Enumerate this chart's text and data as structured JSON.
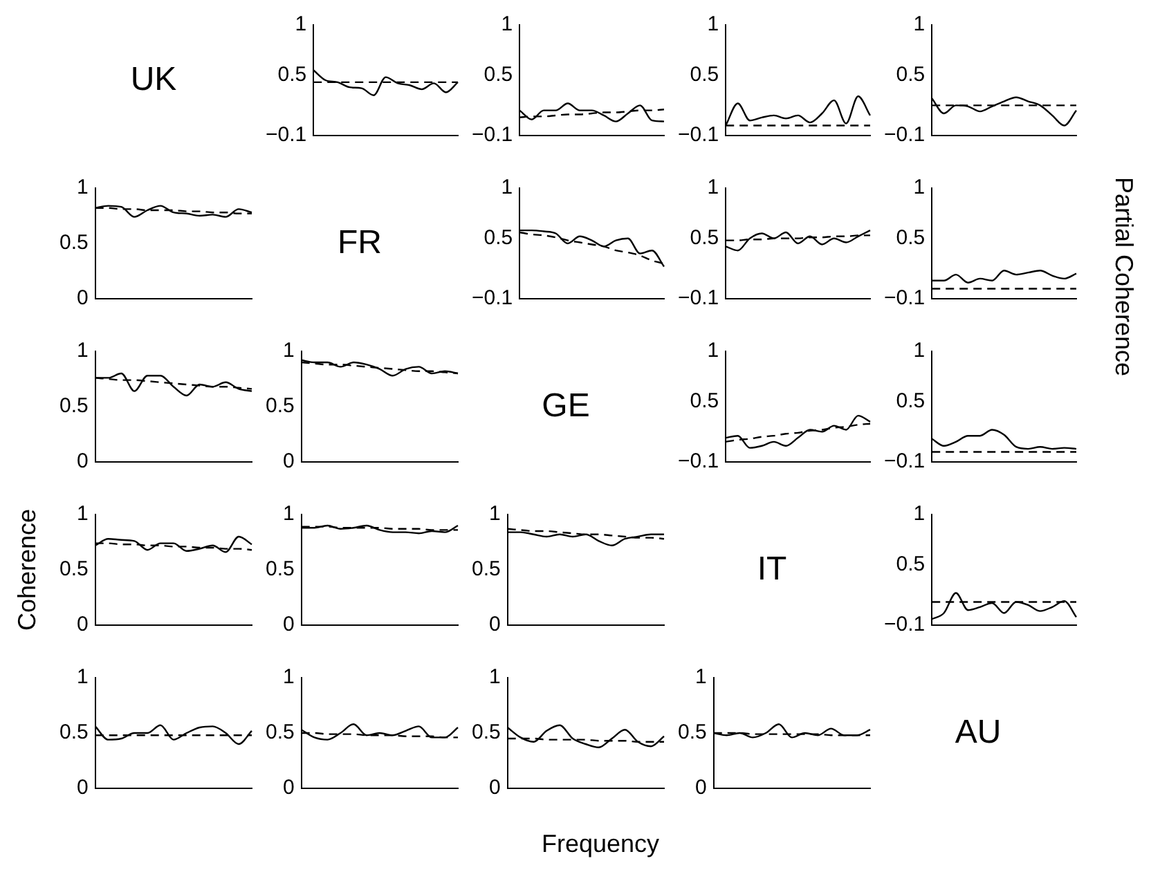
{
  "chart_data": [
    {
      "type": "other",
      "title": "UK"
    },
    {
      "type": "line",
      "categories": [
        null,
        null,
        null,
        null,
        null,
        null,
        null,
        null,
        null,
        null,
        null,
        null,
        null
      ],
      "ylim": [
        -0.1,
        1
      ],
      "yticks": [
        -0.1,
        0.5,
        1
      ],
      "tick_labels": "y",
      "marker": "none",
      "series": [
        {
          "color": "#000000",
          "line_style": "solid",
          "values": [
            0.55,
            0.45,
            0.43,
            0.38,
            0.37,
            0.3,
            0.48,
            0.42,
            0.4,
            0.36,
            0.42,
            0.33,
            0.43
          ]
        },
        {
          "color": "#000000",
          "line_style": "dashed",
          "values": [
            0.43,
            0.43,
            0.43,
            0.43,
            0.43,
            0.43,
            0.43,
            0.43,
            0.43,
            0.43,
            0.43,
            0.43,
            0.43
          ]
        }
      ]
    },
    {
      "type": "line",
      "categories": [
        null,
        null,
        null,
        null,
        null,
        null,
        null,
        null,
        null,
        null,
        null,
        null,
        null
      ],
      "ylim": [
        -0.1,
        1
      ],
      "yticks": [
        -0.1,
        0.5,
        1
      ],
      "tick_labels": "y",
      "marker": "none",
      "series": [
        {
          "color": "#000000",
          "line_style": "solid",
          "values": [
            0.15,
            0.06,
            0.15,
            0.15,
            0.22,
            0.15,
            0.15,
            0.1,
            0.04,
            0.12,
            0.2,
            0.05,
            0.04
          ]
        },
        {
          "color": "#000000",
          "line_style": "dashed",
          "values": [
            0.08,
            0.09,
            0.09,
            0.1,
            0.11,
            0.11,
            0.12,
            0.13,
            0.13,
            0.14,
            0.15,
            0.15,
            0.16
          ]
        }
      ]
    },
    {
      "type": "line",
      "categories": [
        null,
        null,
        null,
        null,
        null,
        null,
        null,
        null,
        null,
        null,
        null,
        null,
        null
      ],
      "ylim": [
        -0.1,
        1
      ],
      "yticks": [
        -0.1,
        0.5,
        1
      ],
      "tick_labels": "y",
      "marker": "none",
      "series": [
        {
          "color": "#000000",
          "line_style": "solid",
          "values": [
            0,
            0.22,
            0.05,
            0.08,
            0.1,
            0.07,
            0.1,
            0.03,
            0.12,
            0.25,
            0.02,
            0.29,
            0.1
          ]
        },
        {
          "color": "#000000",
          "line_style": "dashed",
          "values": [
            0,
            0,
            0,
            0,
            0,
            0,
            0,
            0,
            0,
            0,
            0,
            0,
            0
          ]
        }
      ]
    },
    {
      "type": "line",
      "categories": [
        null,
        null,
        null,
        null,
        null,
        null,
        null,
        null,
        null,
        null,
        null,
        null,
        null
      ],
      "ylim": [
        -0.1,
        1
      ],
      "yticks": [
        -0.1,
        0.5,
        1
      ],
      "tick_labels": "y",
      "marker": "none",
      "series": [
        {
          "color": "#000000",
          "line_style": "solid",
          "values": [
            0.27,
            0.12,
            0.2,
            0.19,
            0.14,
            0.19,
            0.24,
            0.28,
            0.24,
            0.2,
            0.1,
            0,
            0.15
          ]
        },
        {
          "color": "#000000",
          "line_style": "dashed",
          "values": [
            0.2,
            0.2,
            0.2,
            0.2,
            0.2,
            0.2,
            0.2,
            0.2,
            0.2,
            0.2,
            0.2,
            0.2,
            0.2
          ]
        }
      ]
    },
    {
      "type": "line",
      "categories": [
        null,
        null,
        null,
        null,
        null,
        null,
        null,
        null,
        null,
        null,
        null,
        null,
        null
      ],
      "ylim": [
        0,
        1
      ],
      "yticks": [
        0,
        0.5,
        1
      ],
      "tick_labels": "y",
      "marker": "none",
      "series": [
        {
          "color": "#000000",
          "line_style": "solid",
          "values": [
            0.82,
            0.84,
            0.83,
            0.74,
            0.8,
            0.84,
            0.78,
            0.77,
            0.75,
            0.76,
            0.74,
            0.81,
            0.78
          ]
        },
        {
          "color": "#000000",
          "line_style": "dashed",
          "values": [
            0.82,
            0.82,
            0.81,
            0.81,
            0.8,
            0.8,
            0.8,
            0.79,
            0.79,
            0.78,
            0.78,
            0.77,
            0.77
          ]
        }
      ]
    },
    {
      "type": "other",
      "title": "FR"
    },
    {
      "type": "line",
      "categories": [
        null,
        null,
        null,
        null,
        null,
        null,
        null,
        null,
        null,
        null,
        null,
        null,
        null
      ],
      "ylim": [
        -0.1,
        1
      ],
      "yticks": [
        -0.1,
        0.5,
        1
      ],
      "tick_labels": "y",
      "marker": "none",
      "series": [
        {
          "color": "#000000",
          "line_style": "solid",
          "values": [
            0.58,
            0.58,
            0.57,
            0.55,
            0.45,
            0.52,
            0.48,
            0.42,
            0.48,
            0.5,
            0.35,
            0.38,
            0.22
          ]
        },
        {
          "color": "#000000",
          "line_style": "dashed",
          "values": [
            0.56,
            0.54,
            0.53,
            0.51,
            0.48,
            0.46,
            0.44,
            0.42,
            0.38,
            0.36,
            0.33,
            0.28,
            0.25
          ]
        }
      ]
    },
    {
      "type": "line",
      "categories": [
        null,
        null,
        null,
        null,
        null,
        null,
        null,
        null,
        null,
        null,
        null,
        null,
        null
      ],
      "ylim": [
        -0.1,
        1
      ],
      "yticks": [
        -0.1,
        0.5,
        1
      ],
      "tick_labels": "y",
      "marker": "none",
      "series": [
        {
          "color": "#000000",
          "line_style": "solid",
          "values": [
            0.42,
            0.38,
            0.5,
            0.55,
            0.5,
            0.56,
            0.45,
            0.52,
            0.44,
            0.5,
            0.46,
            0.52,
            0.58
          ]
        },
        {
          "color": "#000000",
          "line_style": "dashed",
          "values": [
            0.48,
            0.48,
            0.49,
            0.49,
            0.5,
            0.5,
            0.5,
            0.51,
            0.51,
            0.52,
            0.52,
            0.53,
            0.53
          ]
        }
      ]
    },
    {
      "type": "line",
      "categories": [
        null,
        null,
        null,
        null,
        null,
        null,
        null,
        null,
        null,
        null,
        null,
        null,
        null
      ],
      "ylim": [
        -0.1,
        1
      ],
      "yticks": [
        -0.1,
        0.5,
        1
      ],
      "tick_labels": "y",
      "marker": "none",
      "series": [
        {
          "color": "#000000",
          "line_style": "solid",
          "values": [
            0.08,
            0.08,
            0.14,
            0.06,
            0.1,
            0.08,
            0.18,
            0.14,
            0.16,
            0.18,
            0.13,
            0.1,
            0.15
          ]
        },
        {
          "color": "#000000",
          "line_style": "dashed",
          "values": [
            0,
            0,
            0,
            0,
            0,
            0,
            0,
            0,
            0,
            0,
            0,
            0,
            0
          ]
        }
      ]
    },
    {
      "type": "line",
      "categories": [
        null,
        null,
        null,
        null,
        null,
        null,
        null,
        null,
        null,
        null,
        null,
        null,
        null
      ],
      "ylim": [
        0,
        1
      ],
      "yticks": [
        0,
        0.5,
        1
      ],
      "tick_labels": "y",
      "marker": "none",
      "series": [
        {
          "color": "#000000",
          "line_style": "solid",
          "values": [
            0.76,
            0.76,
            0.8,
            0.64,
            0.78,
            0.78,
            0.68,
            0.6,
            0.7,
            0.68,
            0.72,
            0.66,
            0.64
          ]
        },
        {
          "color": "#000000",
          "line_style": "dashed",
          "values": [
            0.76,
            0.75,
            0.74,
            0.74,
            0.73,
            0.72,
            0.71,
            0.7,
            0.69,
            0.68,
            0.68,
            0.67,
            0.66
          ]
        }
      ]
    },
    {
      "type": "line",
      "categories": [
        null,
        null,
        null,
        null,
        null,
        null,
        null,
        null,
        null,
        null,
        null,
        null,
        null
      ],
      "ylim": [
        0,
        1
      ],
      "yticks": [
        0,
        0.5,
        1
      ],
      "tick_labels": "y",
      "marker": "none",
      "series": [
        {
          "color": "#000000",
          "line_style": "solid",
          "values": [
            0.92,
            0.9,
            0.9,
            0.86,
            0.9,
            0.88,
            0.84,
            0.78,
            0.84,
            0.86,
            0.8,
            0.82,
            0.8
          ]
        },
        {
          "color": "#000000",
          "line_style": "dashed",
          "values": [
            0.9,
            0.89,
            0.88,
            0.88,
            0.87,
            0.86,
            0.85,
            0.84,
            0.83,
            0.82,
            0.82,
            0.81,
            0.8
          ]
        }
      ]
    },
    {
      "type": "other",
      "title": "GE"
    },
    {
      "type": "line",
      "categories": [
        null,
        null,
        null,
        null,
        null,
        null,
        null,
        null,
        null,
        null,
        null,
        null,
        null
      ],
      "ylim": [
        -0.1,
        1
      ],
      "yticks": [
        -0.1,
        0.5,
        1
      ],
      "tick_labels": "y",
      "marker": "none",
      "series": [
        {
          "color": "#000000",
          "line_style": "solid",
          "values": [
            0.14,
            0.16,
            0.04,
            0.06,
            0.1,
            0.06,
            0.14,
            0.22,
            0.2,
            0.26,
            0.22,
            0.36,
            0.3
          ]
        },
        {
          "color": "#000000",
          "line_style": "dashed",
          "values": [
            0.1,
            0.12,
            0.13,
            0.15,
            0.16,
            0.18,
            0.19,
            0.21,
            0.22,
            0.24,
            0.25,
            0.27,
            0.28
          ]
        }
      ]
    },
    {
      "type": "line",
      "categories": [
        null,
        null,
        null,
        null,
        null,
        null,
        null,
        null,
        null,
        null,
        null,
        null,
        null
      ],
      "ylim": [
        -0.1,
        1
      ],
      "yticks": [
        -0.1,
        0.5,
        1
      ],
      "tick_labels": "y",
      "marker": "none",
      "y2label": "Partial Coherence",
      "series": [
        {
          "color": "#000000",
          "line_style": "solid",
          "values": [
            0.13,
            0.06,
            0.1,
            0.16,
            0.16,
            0.22,
            0.17,
            0.05,
            0.03,
            0.05,
            0.03,
            0.04,
            0.03
          ]
        },
        {
          "color": "#000000",
          "line_style": "dashed",
          "values": [
            0,
            0,
            0,
            0,
            0,
            0,
            0,
            0,
            0,
            0,
            0,
            0,
            0
          ]
        }
      ]
    },
    {
      "type": "line",
      "categories": [
        null,
        null,
        null,
        null,
        null,
        null,
        null,
        null,
        null,
        null,
        null,
        null,
        null
      ],
      "ylim": [
        0,
        1
      ],
      "yticks": [
        0,
        0.5,
        1
      ],
      "tick_labels": "y",
      "marker": "none",
      "ylabel": "Coherence",
      "series": [
        {
          "color": "#000000",
          "line_style": "solid",
          "values": [
            0.72,
            0.78,
            0.77,
            0.76,
            0.68,
            0.74,
            0.74,
            0.67,
            0.69,
            0.72,
            0.66,
            0.8,
            0.73
          ]
        },
        {
          "color": "#000000",
          "line_style": "dashed",
          "values": [
            0.74,
            0.74,
            0.73,
            0.73,
            0.72,
            0.72,
            0.71,
            0.71,
            0.7,
            0.7,
            0.69,
            0.69,
            0.68
          ]
        }
      ]
    },
    {
      "type": "line",
      "categories": [
        null,
        null,
        null,
        null,
        null,
        null,
        null,
        null,
        null,
        null,
        null,
        null,
        null
      ],
      "ylim": [
        0,
        1
      ],
      "yticks": [
        0,
        0.5,
        1
      ],
      "tick_labels": "y",
      "marker": "none",
      "series": [
        {
          "color": "#000000",
          "line_style": "solid",
          "values": [
            0.88,
            0.88,
            0.9,
            0.87,
            0.88,
            0.9,
            0.86,
            0.84,
            0.84,
            0.83,
            0.85,
            0.84,
            0.9
          ]
        },
        {
          "color": "#000000",
          "line_style": "dashed",
          "values": [
            0.89,
            0.89,
            0.89,
            0.88,
            0.88,
            0.88,
            0.88,
            0.87,
            0.87,
            0.87,
            0.86,
            0.86,
            0.86
          ]
        }
      ]
    },
    {
      "type": "line",
      "categories": [
        null,
        null,
        null,
        null,
        null,
        null,
        null,
        null,
        null,
        null,
        null,
        null,
        null
      ],
      "ylim": [
        0,
        1
      ],
      "yticks": [
        0,
        0.5,
        1
      ],
      "tick_labels": "y",
      "marker": "none",
      "series": [
        {
          "color": "#000000",
          "line_style": "solid",
          "values": [
            0.84,
            0.84,
            0.82,
            0.8,
            0.82,
            0.8,
            0.82,
            0.76,
            0.72,
            0.78,
            0.8,
            0.82,
            0.82
          ]
        },
        {
          "color": "#000000",
          "line_style": "dashed",
          "values": [
            0.87,
            0.86,
            0.85,
            0.85,
            0.84,
            0.83,
            0.82,
            0.82,
            0.81,
            0.8,
            0.79,
            0.79,
            0.78
          ]
        }
      ]
    },
    {
      "type": "other",
      "title": "IT"
    },
    {
      "type": "line",
      "categories": [
        null,
        null,
        null,
        null,
        null,
        null,
        null,
        null,
        null,
        null,
        null,
        null,
        null
      ],
      "ylim": [
        -0.1,
        1
      ],
      "yticks": [
        -0.1,
        0.5,
        1
      ],
      "tick_labels": "y",
      "marker": "none",
      "series": [
        {
          "color": "#000000",
          "line_style": "solid",
          "values": [
            -0.04,
            0.02,
            0.22,
            0.05,
            0.08,
            0.12,
            0.02,
            0.13,
            0.1,
            0.04,
            0.08,
            0.14,
            -0.02
          ]
        },
        {
          "color": "#000000",
          "line_style": "dashed",
          "values": [
            0.13,
            0.13,
            0.13,
            0.13,
            0.13,
            0.13,
            0.13,
            0.13,
            0.13,
            0.13,
            0.13,
            0.13,
            0.13
          ]
        }
      ]
    },
    {
      "type": "line",
      "categories": [
        null,
        null,
        null,
        null,
        null,
        null,
        null,
        null,
        null,
        null,
        null,
        null,
        null
      ],
      "ylim": [
        0,
        1
      ],
      "yticks": [
        0,
        0.5,
        1
      ],
      "tick_labels": "y",
      "marker": "none",
      "series": [
        {
          "color": "#000000",
          "line_style": "solid",
          "values": [
            0.56,
            0.44,
            0.45,
            0.5,
            0.5,
            0.57,
            0.44,
            0.5,
            0.55,
            0.56,
            0.5,
            0.4,
            0.52
          ]
        },
        {
          "color": "#000000",
          "line_style": "dashed",
          "values": [
            0.48,
            0.48,
            0.48,
            0.48,
            0.48,
            0.48,
            0.48,
            0.48,
            0.48,
            0.48,
            0.48,
            0.48,
            0.48
          ]
        }
      ]
    },
    {
      "type": "line",
      "categories": [
        null,
        null,
        null,
        null,
        null,
        null,
        null,
        null,
        null,
        null,
        null,
        null,
        null
      ],
      "ylim": [
        0,
        1
      ],
      "yticks": [
        0,
        0.5,
        1
      ],
      "tick_labels": "y",
      "marker": "none",
      "series": [
        {
          "color": "#000000",
          "line_style": "solid",
          "values": [
            0.53,
            0.46,
            0.44,
            0.5,
            0.58,
            0.48,
            0.5,
            0.48,
            0.52,
            0.56,
            0.46,
            0.46,
            0.55
          ]
        },
        {
          "color": "#000000",
          "line_style": "dashed",
          "values": [
            0.5,
            0.5,
            0.49,
            0.49,
            0.49,
            0.48,
            0.48,
            0.48,
            0.47,
            0.47,
            0.47,
            0.46,
            0.46
          ]
        }
      ]
    },
    {
      "type": "line",
      "categories": [
        null,
        null,
        null,
        null,
        null,
        null,
        null,
        null,
        null,
        null,
        null,
        null,
        null
      ],
      "ylim": [
        0,
        1
      ],
      "yticks": [
        0,
        0.5,
        1
      ],
      "tick_labels": "y",
      "marker": "none",
      "xlabel": "Frequency",
      "series": [
        {
          "color": "#000000",
          "line_style": "solid",
          "values": [
            0.55,
            0.46,
            0.42,
            0.52,
            0.57,
            0.45,
            0.4,
            0.37,
            0.45,
            0.53,
            0.42,
            0.38,
            0.47
          ]
        },
        {
          "color": "#000000",
          "line_style": "dashed",
          "values": [
            0.45,
            0.45,
            0.45,
            0.44,
            0.44,
            0.44,
            0.44,
            0.43,
            0.43,
            0.43,
            0.42,
            0.42,
            0.42
          ]
        }
      ]
    },
    {
      "type": "line",
      "categories": [
        null,
        null,
        null,
        null,
        null,
        null,
        null,
        null,
        null,
        null,
        null,
        null,
        null
      ],
      "ylim": [
        0,
        1
      ],
      "yticks": [
        0,
        0.5,
        1
      ],
      "tick_labels": "y",
      "marker": "none",
      "series": [
        {
          "color": "#000000",
          "line_style": "solid",
          "values": [
            0.5,
            0.48,
            0.5,
            0.46,
            0.5,
            0.58,
            0.46,
            0.5,
            0.48,
            0.54,
            0.48,
            0.48,
            0.53
          ]
        },
        {
          "color": "#000000",
          "line_style": "dashed",
          "values": [
            0.5,
            0.5,
            0.5,
            0.49,
            0.49,
            0.49,
            0.49,
            0.49,
            0.49,
            0.48,
            0.48,
            0.48,
            0.48
          ]
        }
      ]
    },
    {
      "type": "other",
      "title": "AU"
    }
  ]
}
